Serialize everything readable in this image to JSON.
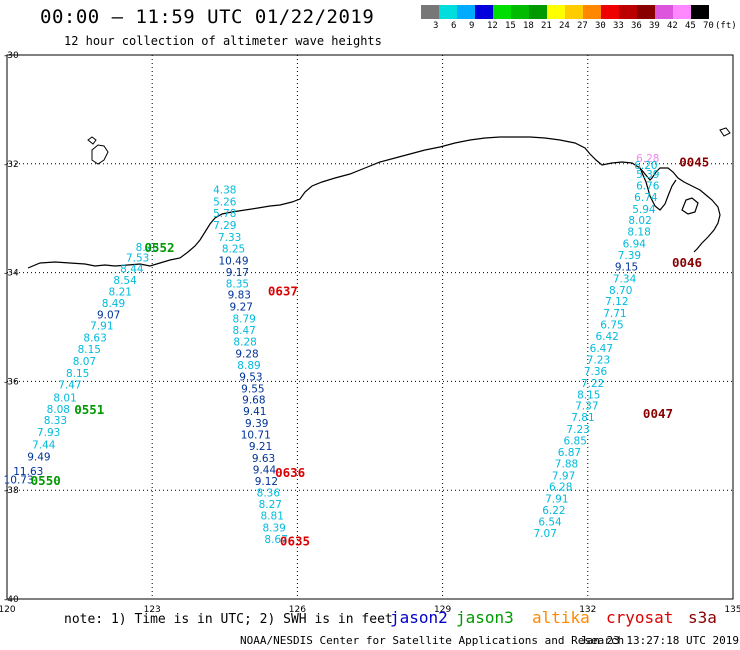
{
  "title": "00:00 – 11:59 UTC 01/22/2019",
  "subtitle": "12 hour collection of altimeter wave heights",
  "colorbar": {
    "colors": [
      "#777777",
      "#00dddd",
      "#00aaff",
      "#0000dd",
      "#00dd00",
      "#00bb00",
      "#009900",
      "#ffff00",
      "#ffcc00",
      "#ff8800",
      "#ee0000",
      "#bb0000",
      "#880000",
      "#dd55dd",
      "#ff88ff",
      "#000000"
    ],
    "labels": [
      "3",
      "6",
      "9",
      "12",
      "15",
      "18",
      "21",
      "24",
      "27",
      "30",
      "33",
      "36",
      "39",
      "42",
      "45",
      "70",
      "(ft)"
    ]
  },
  "axes": {
    "lon_labels": [
      "120",
      "123",
      "126",
      "129",
      "132",
      "135"
    ],
    "lat_labels": [
      "-30",
      "-32",
      "-34",
      "-36",
      "-38",
      "-40"
    ]
  },
  "note": "note:  1) Time is in UTC; 2) SWH is in feet",
  "legend": [
    {
      "name": "jason2",
      "color": "#0000cc"
    },
    {
      "name": "jason3",
      "color": "#009900"
    },
    {
      "name": "altika",
      "color": "#ff8800"
    },
    {
      "name": "cryosat",
      "color": "#dd0000"
    },
    {
      "name": "s3a",
      "color": "#880000"
    }
  ],
  "credit": "NOAA/NESDIS Center for Satellite Applications and Research",
  "timestamp": "Jan 23 13:27:18 UTC 2019",
  "tracks": [
    {
      "name": "west-track",
      "points": [
        {
          "lon": 120.24,
          "lat": -37.88,
          "v": "10.73",
          "c": "#003399"
        },
        {
          "lon": 120.44,
          "lat": -37.72,
          "v": "11.63",
          "c": "#003399"
        },
        {
          "lon": 120.66,
          "lat": -37.45,
          "v": "9.49",
          "c": "#003399"
        },
        {
          "lon": 120.76,
          "lat": -37.23,
          "v": "7.44",
          "c": "#00bbdd"
        },
        {
          "lon": 120.86,
          "lat": -37.0,
          "v": "7.93",
          "c": "#00bbdd"
        },
        {
          "lon": 121.0,
          "lat": -36.78,
          "v": "8.33",
          "c": "#00bbdd"
        },
        {
          "lon": 121.06,
          "lat": -36.58,
          "v": "8.08",
          "c": "#00bbdd"
        },
        {
          "lon": 121.2,
          "lat": -36.37,
          "v": "8.01",
          "c": "#00bbdd"
        },
        {
          "lon": 121.3,
          "lat": -36.13,
          "v": "7.47",
          "c": "#00bbdd"
        },
        {
          "lon": 121.46,
          "lat": -35.92,
          "v": "8.15",
          "c": "#00bbdd"
        },
        {
          "lon": 121.6,
          "lat": -35.7,
          "v": "8.07",
          "c": "#00bbdd"
        },
        {
          "lon": 121.7,
          "lat": -35.48,
          "v": "8.15",
          "c": "#00bbdd"
        },
        {
          "lon": 121.82,
          "lat": -35.27,
          "v": "8.63",
          "c": "#00bbdd"
        },
        {
          "lon": 121.96,
          "lat": -35.05,
          "v": "7.91",
          "c": "#00bbdd"
        },
        {
          "lon": 122.1,
          "lat": -34.84,
          "v": "9.07",
          "c": "#003399"
        },
        {
          "lon": 122.2,
          "lat": -34.63,
          "v": "8.49",
          "c": "#00bbdd"
        },
        {
          "lon": 122.34,
          "lat": -34.42,
          "v": "8.21",
          "c": "#00bbdd"
        },
        {
          "lon": 122.44,
          "lat": -34.21,
          "v": "8.54",
          "c": "#00bbdd"
        },
        {
          "lon": 122.58,
          "lat": -34.0,
          "v": "8.44",
          "c": "#00bbdd"
        },
        {
          "lon": 122.7,
          "lat": -33.8,
          "v": "7.53",
          "c": "#00bbdd"
        },
        {
          "lon": 122.9,
          "lat": -33.6,
          "v": "8.28",
          "c": "#00bbdd"
        }
      ]
    },
    {
      "name": "middle-track",
      "points": [
        {
          "lon": 124.5,
          "lat": -32.55,
          "v": "4.38",
          "c": "#00bbdd"
        },
        {
          "lon": 124.5,
          "lat": -32.77,
          "v": "5.26",
          "c": "#00bbdd"
        },
        {
          "lon": 124.5,
          "lat": -32.98,
          "v": "5.78",
          "c": "#00bbdd"
        },
        {
          "lon": 124.5,
          "lat": -33.2,
          "v": "7.29",
          "c": "#00bbdd"
        },
        {
          "lon": 124.6,
          "lat": -33.42,
          "v": "7.33",
          "c": "#00bbdd"
        },
        {
          "lon": 124.68,
          "lat": -33.63,
          "v": "8.25",
          "c": "#00bbdd"
        },
        {
          "lon": 124.68,
          "lat": -33.85,
          "v": "10.49",
          "c": "#003399"
        },
        {
          "lon": 124.76,
          "lat": -34.06,
          "v": "9.17",
          "c": "#003399"
        },
        {
          "lon": 124.76,
          "lat": -34.27,
          "v": "8.35",
          "c": "#00bbdd"
        },
        {
          "lon": 124.8,
          "lat": -34.48,
          "v": "9.83",
          "c": "#003399"
        },
        {
          "lon": 124.84,
          "lat": -34.7,
          "v": "9.27",
          "c": "#003399"
        },
        {
          "lon": 124.9,
          "lat": -34.92,
          "v": "8.79",
          "c": "#00bbdd"
        },
        {
          "lon": 124.9,
          "lat": -35.13,
          "v": "8.47",
          "c": "#00bbdd"
        },
        {
          "lon": 124.92,
          "lat": -35.34,
          "v": "8.28",
          "c": "#00bbdd"
        },
        {
          "lon": 124.96,
          "lat": -35.56,
          "v": "9.28",
          "c": "#003399"
        },
        {
          "lon": 125.0,
          "lat": -35.77,
          "v": "8.89",
          "c": "#00bbdd"
        },
        {
          "lon": 125.04,
          "lat": -35.98,
          "v": "9.53",
          "c": "#003399"
        },
        {
          "lon": 125.08,
          "lat": -36.2,
          "v": "9.55",
          "c": "#003399"
        },
        {
          "lon": 125.1,
          "lat": -36.41,
          "v": "9.68",
          "c": "#003399"
        },
        {
          "lon": 125.12,
          "lat": -36.62,
          "v": "9.41",
          "c": "#003399"
        },
        {
          "lon": 125.16,
          "lat": -36.84,
          "v": "9.39",
          "c": "#003399"
        },
        {
          "lon": 125.14,
          "lat": -37.05,
          "v": "10.71",
          "c": "#003399"
        },
        {
          "lon": 125.24,
          "lat": -37.26,
          "v": "9.21",
          "c": "#003399"
        },
        {
          "lon": 125.3,
          "lat": -37.48,
          "v": "9.63",
          "c": "#003399"
        },
        {
          "lon": 125.32,
          "lat": -37.69,
          "v": "9.44",
          "c": "#003399"
        },
        {
          "lon": 125.36,
          "lat": -37.9,
          "v": "9.12",
          "c": "#003399"
        },
        {
          "lon": 125.4,
          "lat": -38.12,
          "v": "8.36",
          "c": "#00bbdd"
        },
        {
          "lon": 125.44,
          "lat": -38.33,
          "v": "8.27",
          "c": "#00bbdd"
        },
        {
          "lon": 125.48,
          "lat": -38.54,
          "v": "8.81",
          "c": "#00bbdd"
        },
        {
          "lon": 125.52,
          "lat": -38.76,
          "v": "8.39",
          "c": "#00bbdd"
        },
        {
          "lon": 125.56,
          "lat": -38.97,
          "v": "8.67",
          "c": "#00bbdd"
        }
      ]
    },
    {
      "name": "east-track",
      "points": [
        {
          "lon": 133.24,
          "lat": -31.97,
          "v": "6.28",
          "c": "#ee88ee"
        },
        {
          "lon": 133.2,
          "lat": -32.1,
          "v": "6.20",
          "c": "#00bbdd"
        },
        {
          "lon": 133.24,
          "lat": -32.26,
          "v": "5.39",
          "c": "#00bbdd"
        },
        {
          "lon": 133.24,
          "lat": -32.47,
          "v": "6.76",
          "c": "#00bbdd"
        },
        {
          "lon": 133.2,
          "lat": -32.68,
          "v": "6.74",
          "c": "#00bbdd"
        },
        {
          "lon": 133.16,
          "lat": -32.9,
          "v": "5.94",
          "c": "#00bbdd"
        },
        {
          "lon": 133.08,
          "lat": -33.11,
          "v": "8.02",
          "c": "#00bbdd"
        },
        {
          "lon": 133.06,
          "lat": -33.32,
          "v": "8.18",
          "c": "#00bbdd"
        },
        {
          "lon": 132.96,
          "lat": -33.54,
          "v": "6.94",
          "c": "#00bbdd"
        },
        {
          "lon": 132.86,
          "lat": -33.75,
          "v": "7.39",
          "c": "#00bbdd"
        },
        {
          "lon": 132.8,
          "lat": -33.96,
          "v": "9.15",
          "c": "#003399"
        },
        {
          "lon": 132.76,
          "lat": -34.18,
          "v": "7.34",
          "c": "#00bbdd"
        },
        {
          "lon": 132.68,
          "lat": -34.39,
          "v": "8.70",
          "c": "#00bbdd"
        },
        {
          "lon": 132.6,
          "lat": -34.6,
          "v": "7.12",
          "c": "#00bbdd"
        },
        {
          "lon": 132.56,
          "lat": -34.82,
          "v": "7.71",
          "c": "#00bbdd"
        },
        {
          "lon": 132.5,
          "lat": -35.03,
          "v": "6.75",
          "c": "#00bbdd"
        },
        {
          "lon": 132.4,
          "lat": -35.24,
          "v": "6.42",
          "c": "#00bbdd"
        },
        {
          "lon": 132.28,
          "lat": -35.46,
          "v": "6.47",
          "c": "#00bbdd"
        },
        {
          "lon": 132.22,
          "lat": -35.67,
          "v": "7.23",
          "c": "#00bbdd"
        },
        {
          "lon": 132.16,
          "lat": -35.88,
          "v": "7.36",
          "c": "#00bbdd"
        },
        {
          "lon": 132.1,
          "lat": -36.1,
          "v": "7.22",
          "c": "#00bbdd"
        },
        {
          "lon": 132.02,
          "lat": -36.31,
          "v": "8.15",
          "c": "#00bbdd"
        },
        {
          "lon": 131.98,
          "lat": -36.52,
          "v": "7.37",
          "c": "#00bbdd"
        },
        {
          "lon": 131.9,
          "lat": -36.73,
          "v": "7.81",
          "c": "#00bbdd"
        },
        {
          "lon": 131.8,
          "lat": -36.95,
          "v": "7.23",
          "c": "#00bbdd"
        },
        {
          "lon": 131.74,
          "lat": -37.16,
          "v": "6.85",
          "c": "#00bbdd"
        },
        {
          "lon": 131.62,
          "lat": -37.37,
          "v": "6.87",
          "c": "#00bbdd"
        },
        {
          "lon": 131.56,
          "lat": -37.58,
          "v": "7.88",
          "c": "#00bbdd"
        },
        {
          "lon": 131.5,
          "lat": -37.8,
          "v": "7.97",
          "c": "#00bbdd"
        },
        {
          "lon": 131.44,
          "lat": -38.01,
          "v": "6.28",
          "c": "#00bbdd"
        },
        {
          "lon": 131.36,
          "lat": -38.23,
          "v": "7.91",
          "c": "#00bbdd"
        },
        {
          "lon": 131.3,
          "lat": -38.44,
          "v": "6.22",
          "c": "#00bbdd"
        },
        {
          "lon": 131.22,
          "lat": -38.65,
          "v": "6.54",
          "c": "#00bbdd"
        },
        {
          "lon": 131.12,
          "lat": -38.86,
          "v": "7.07",
          "c": "#00bbdd"
        }
      ]
    }
  ],
  "pass_labels": [
    {
      "text": "0552",
      "lon": 123.15,
      "lat": -33.62,
      "c": "#009900"
    },
    {
      "text": "0551",
      "lon": 121.7,
      "lat": -36.6,
      "c": "#009900"
    },
    {
      "text": "0550",
      "lon": 120.8,
      "lat": -37.9,
      "c": "#009900"
    },
    {
      "text": "0637",
      "lon": 125.7,
      "lat": -34.42,
      "c": "#dd0000"
    },
    {
      "text": "0636",
      "lon": 125.85,
      "lat": -37.76,
      "c": "#dd0000"
    },
    {
      "text": "0635",
      "lon": 125.95,
      "lat": -39.02,
      "c": "#dd0000"
    },
    {
      "text": "0045",
      "lon": 134.2,
      "lat": -32.05,
      "c": "#880000"
    },
    {
      "text": "0046",
      "lon": 134.05,
      "lat": -33.9,
      "c": "#880000"
    },
    {
      "text": "0047",
      "lon": 133.45,
      "lat": -36.67,
      "c": "#880000"
    }
  ]
}
